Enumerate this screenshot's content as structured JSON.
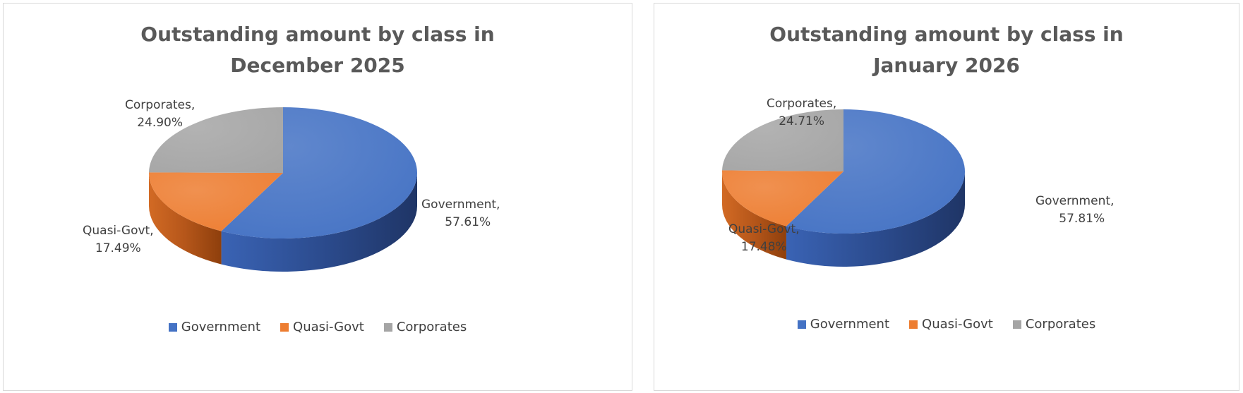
{
  "colors": {
    "government": "#4472c4",
    "quasi_govt": "#ed7d31",
    "corporates": "#a5a5a5"
  },
  "chart_data": [
    {
      "type": "pie",
      "title": "Outstanding amount by class in December 2025",
      "title_lines": [
        "Outstanding amount by class in",
        "December 2025"
      ],
      "categories": [
        "Government",
        "Quasi-Govt",
        "Corporates"
      ],
      "values": [
        57.61,
        17.49,
        24.9
      ],
      "data_labels": [
        {
          "name": "Government,",
          "value": "57.61%"
        },
        {
          "name": "Quasi-Govt,",
          "value": "17.49%"
        },
        {
          "name": "Corporates,",
          "value": "24.90%"
        }
      ],
      "legend": [
        "Government",
        "Quasi-Govt",
        "Corporates"
      ],
      "legend_position": "bottom",
      "style": "3d"
    },
    {
      "type": "pie",
      "title": "Outstanding amount by class in January 2026",
      "title_lines": [
        "Outstanding amount by class in",
        "January 2026"
      ],
      "categories": [
        "Government",
        "Quasi-Govt",
        "Corporates"
      ],
      "values": [
        57.81,
        17.48,
        24.71
      ],
      "data_labels": [
        {
          "name": "Government,",
          "value": "57.81%"
        },
        {
          "name": "Quasi-Govt,",
          "value": "17.48%"
        },
        {
          "name": "Corporates,",
          "value": "24.71%"
        }
      ],
      "legend": [
        "Government",
        "Quasi-Govt",
        "Corporates"
      ],
      "legend_position": "bottom",
      "style": "3d"
    }
  ]
}
